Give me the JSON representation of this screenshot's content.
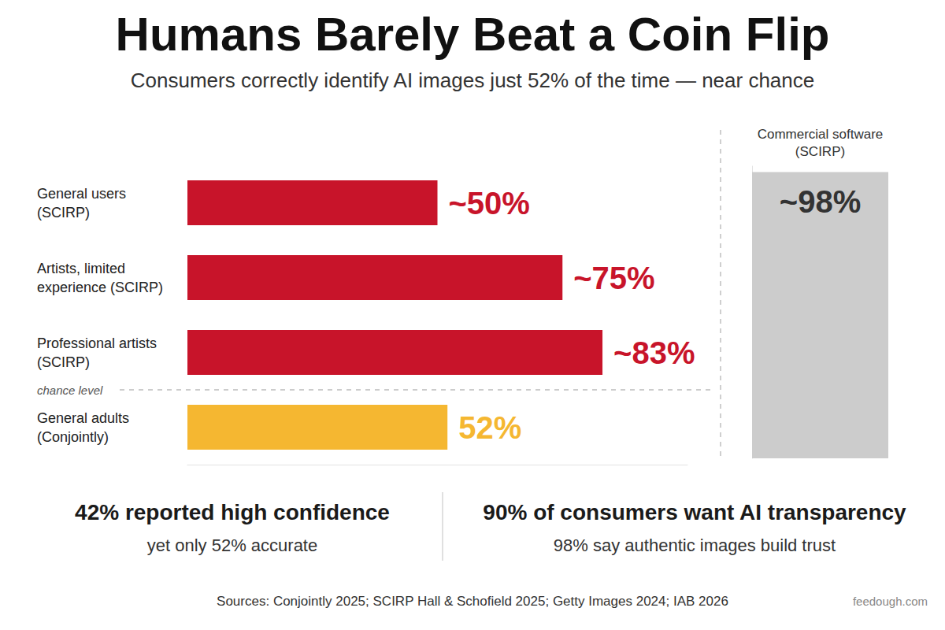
{
  "chart_data": [
    {
      "type": "bar",
      "title": "Humans Barely Beat a Coin Flip",
      "subtitle": "Consumers correctly identify AI images just 52% of the time — near chance",
      "orientation": "horizontal",
      "categories": [
        "General users\n(SCIRP)",
        "Artists, limited\nexperience (SCIRP)",
        "Professional artists\n(SCIRP)",
        "General adults\n(Conjointly)"
      ],
      "values": [
        50,
        75,
        83,
        52
      ],
      "value_labels": [
        "~50%",
        "~75%",
        "~83%",
        "52%"
      ],
      "colors": [
        "#c8142a",
        "#c8142a",
        "#c8142a",
        "#f5b731"
      ],
      "data_labels": true,
      "xlim": [
        0,
        100
      ],
      "tick_labels": false,
      "grid": false,
      "annotations": [
        "chance level"
      ]
    },
    {
      "type": "bar",
      "categories": [
        "Commercial software\n(SCIRP)"
      ],
      "values": [
        98
      ],
      "value_labels": [
        "~98%"
      ],
      "color": "#cccccc",
      "data_labels": true,
      "ylim": [
        0,
        100
      ],
      "tick_labels": "x",
      "grid": false
    }
  ],
  "stats": [
    {
      "headline": "42% reported high confidence",
      "note": "yet only 52% accurate"
    },
    {
      "headline": "90% of consumers want AI transparency",
      "note": "98% say authentic images build trust"
    }
  ],
  "sources": "Sources: Conjointly 2025; SCIRP Hall & Schofield 2025; Getty Images 2024; IAB 2026",
  "credit": "feedough.com"
}
